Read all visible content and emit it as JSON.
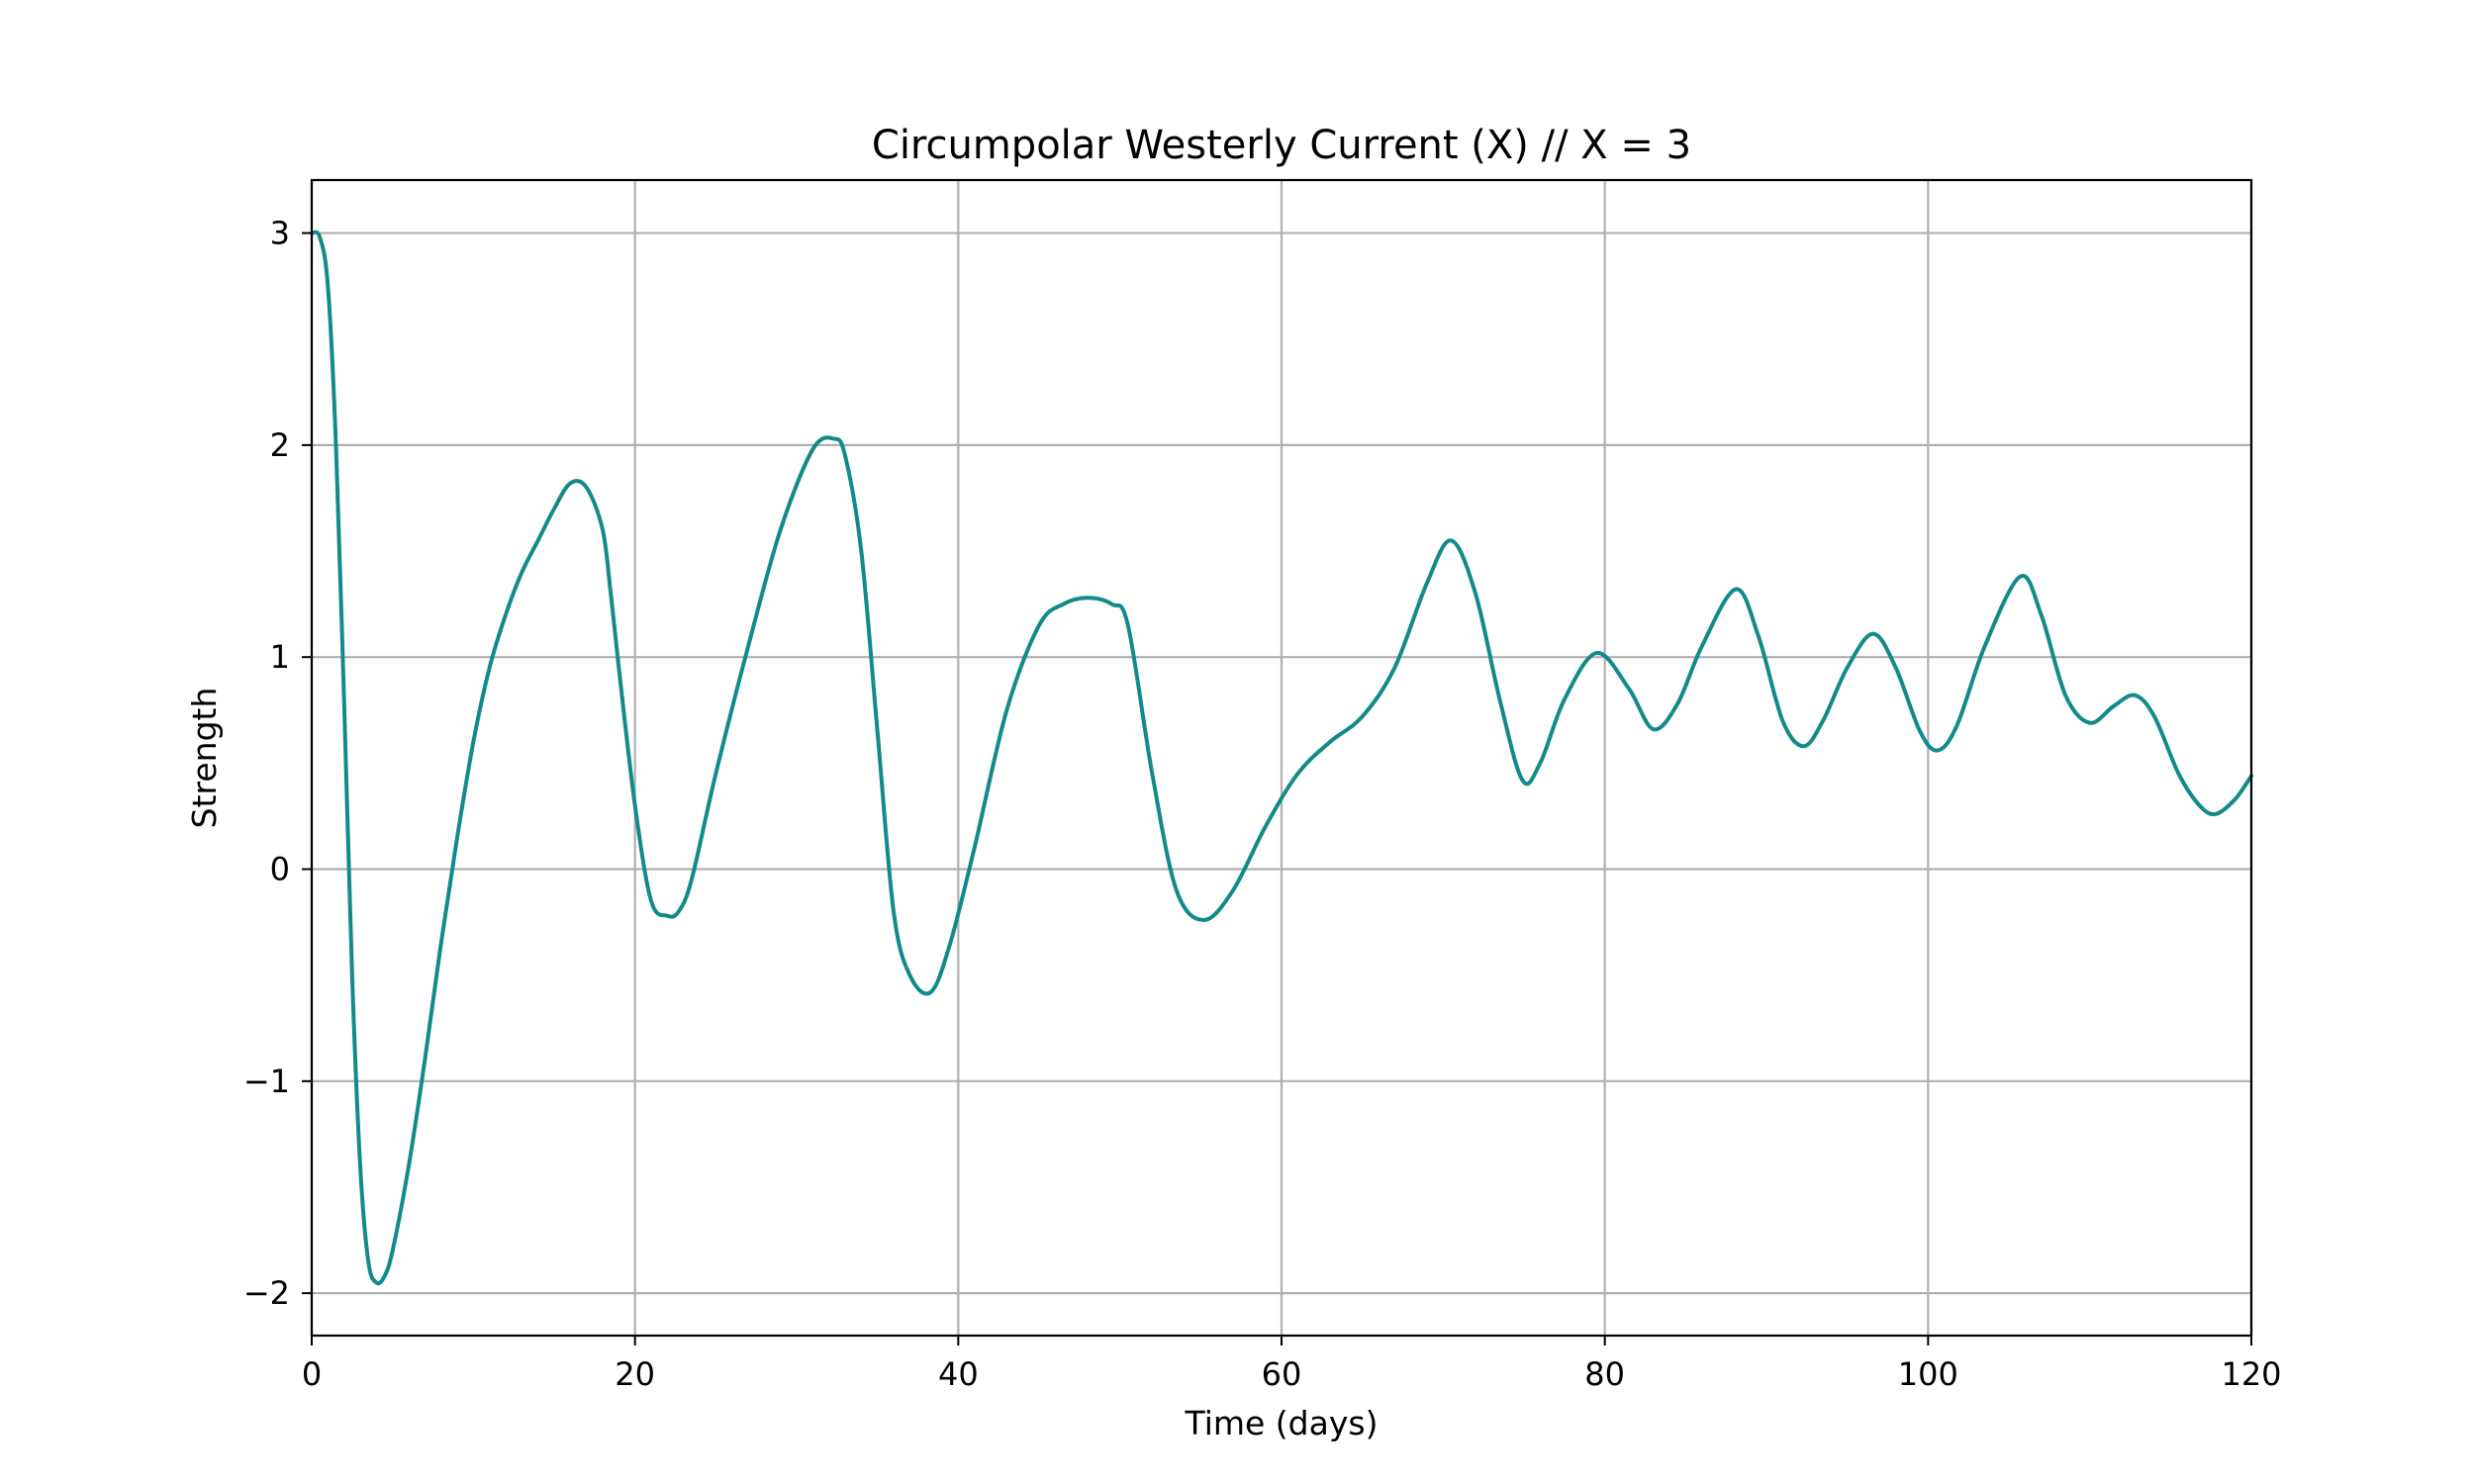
{
  "chart_data": {
    "type": "line",
    "title": "Circumpolar Westerly Current (X) // X = 3",
    "xlabel": "Time (days)",
    "ylabel": "Strength",
    "xlim": [
      0,
      120
    ],
    "ylim": [
      -2.2,
      3.25
    ],
    "xticks": [
      0,
      20,
      40,
      60,
      80,
      100,
      120
    ],
    "yticks": [
      -2,
      -1,
      0,
      1,
      2,
      3
    ],
    "xtick_labels": [
      "0",
      "20",
      "40",
      "60",
      "80",
      "100",
      "120"
    ],
    "ytick_labels": [
      "−2",
      "−1",
      "0",
      "1",
      "2",
      "3"
    ],
    "grid": true,
    "legend": "none",
    "series": [
      {
        "color": "#138a8a",
        "x": [
          0,
          0.5,
          1.0,
          1.5,
          2.0,
          2.5,
          3.0,
          3.5,
          4.0,
          4.5,
          5.0,
          6.0,
          7.0,
          8.0,
          9.0,
          10.0,
          11.0,
          12.0,
          13.0,
          14.0,
          15.0,
          16.0,
          17.0,
          18.0,
          18.5,
          19.0,
          20.0,
          21.0,
          22.0,
          22.7,
          23.5,
          25.0,
          27.0,
          29.0,
          31.0,
          32.3,
          33.0,
          34.0,
          35.0,
          36.0,
          37.0,
          38.3,
          39.5,
          41.0,
          43.0,
          45.0,
          46.5,
          48.0,
          49.5,
          50.5,
          52.0,
          53.5,
          55.2,
          57.0,
          59.0,
          61.0,
          63.0,
          65.0,
          67.0,
          69.0,
          70.5,
          72.0,
          73.5,
          74.9,
          76.0,
          77.5,
          79.5,
          81.5,
          83.0,
          84.5,
          86.0,
          88.1,
          89.5,
          91.0,
          92.3,
          93.5,
          95.0,
          96.6,
          98.0,
          99.5,
          100.6,
          101.8,
          103.5,
          105.7,
          107.0,
          108.5,
          110.0,
          111.5,
          112.8,
          114.0,
          115.5,
          116.8,
          117.8,
          119.0,
          120.0
        ],
        "y": [
          3.0,
          2.98,
          2.75,
          2.0,
          0.8,
          -0.5,
          -1.4,
          -1.85,
          -1.95,
          -1.92,
          -1.8,
          -1.4,
          -0.9,
          -0.35,
          0.15,
          0.6,
          0.95,
          1.2,
          1.4,
          1.55,
          1.7,
          1.82,
          1.8,
          1.6,
          1.3,
          0.95,
          0.3,
          -0.15,
          -0.22,
          -0.2,
          -0.05,
          0.45,
          1.05,
          1.6,
          1.98,
          2.03,
          1.95,
          1.5,
          0.65,
          -0.2,
          -0.5,
          -0.58,
          -0.35,
          0.1,
          0.75,
          1.15,
          1.25,
          1.28,
          1.25,
          1.15,
          0.45,
          -0.1,
          -0.24,
          -0.1,
          0.2,
          0.45,
          0.6,
          0.72,
          0.95,
          1.35,
          1.55,
          1.3,
          0.8,
          0.42,
          0.5,
          0.8,
          1.02,
          0.85,
          0.66,
          0.78,
          1.05,
          1.32,
          1.1,
          0.7,
          0.58,
          0.7,
          0.95,
          1.11,
          0.95,
          0.65,
          0.56,
          0.68,
          1.05,
          1.38,
          1.2,
          0.82,
          0.69,
          0.77,
          0.82,
          0.72,
          0.45,
          0.3,
          0.26,
          0.33,
          0.44
        ]
      }
    ]
  }
}
